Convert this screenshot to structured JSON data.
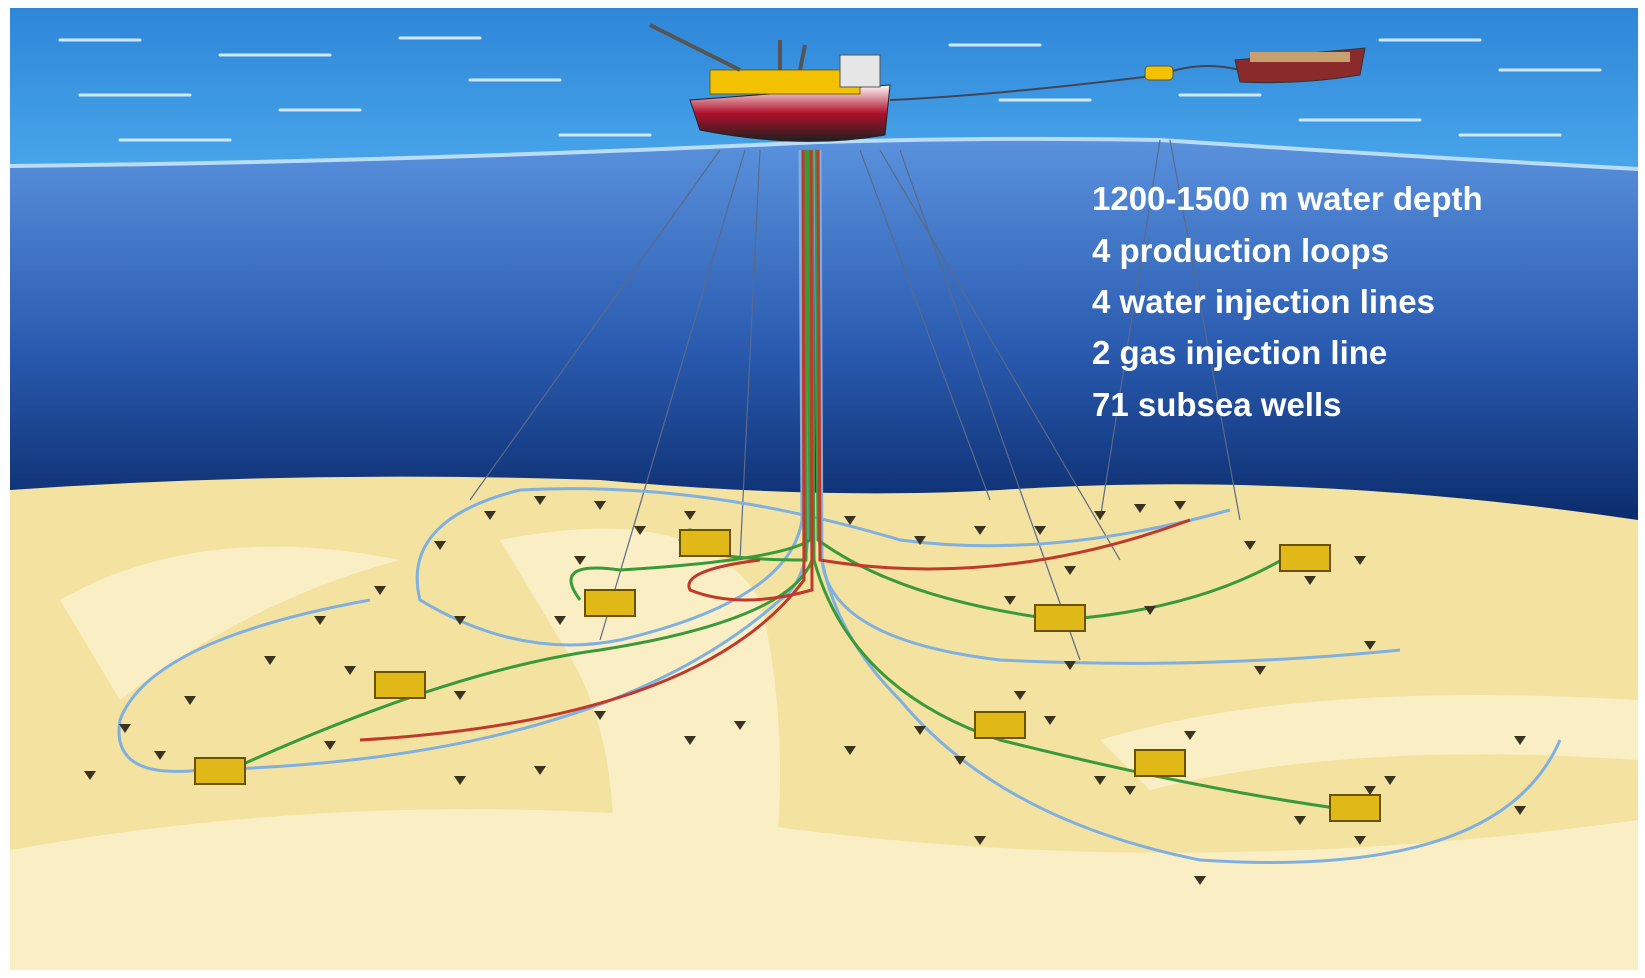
{
  "annotations": [
    "1200-1500 m water depth",
    "4 production loops",
    "4 water injection lines",
    "2 gas injection line",
    "71 subsea wells"
  ]
}
